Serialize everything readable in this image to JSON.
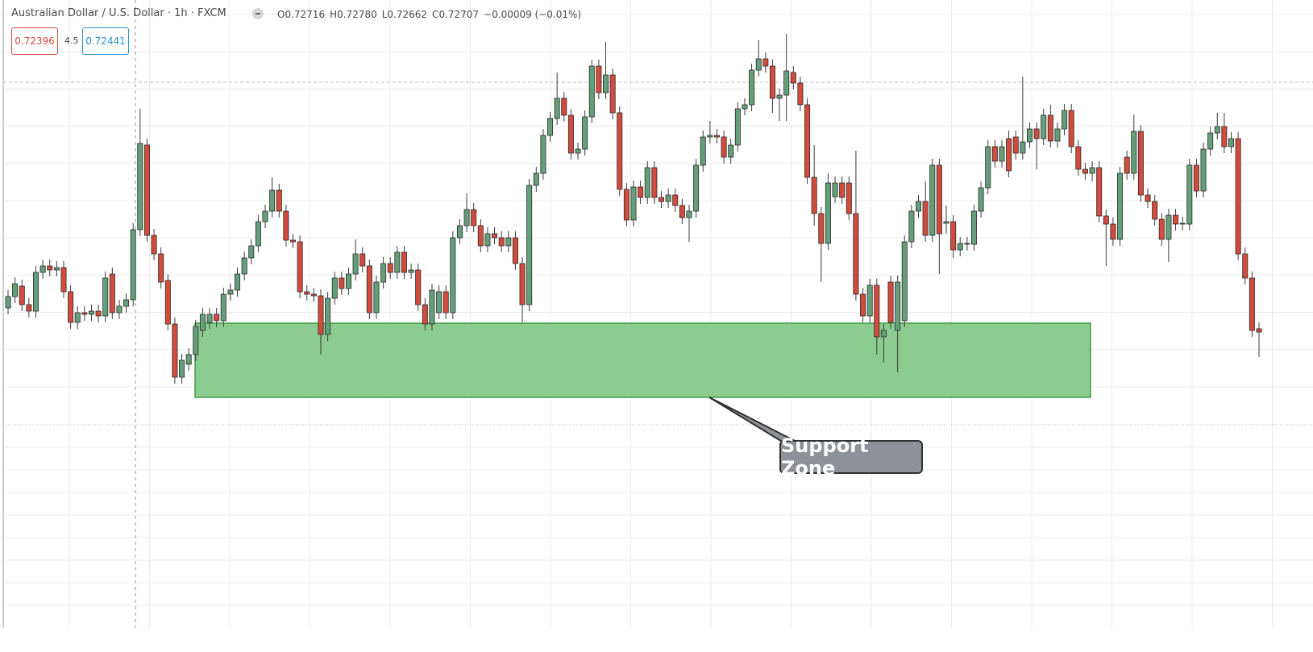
{
  "header": {
    "symbol": "Australian Dollar / U.S. Dollar · 1h · FXCM",
    "ohlc": [
      {
        "label": "O",
        "value": "0.72716"
      },
      {
        "label": "H",
        "value": "0.72780"
      },
      {
        "label": "L",
        "value": "0.72662"
      },
      {
        "label": "C",
        "value": "0.72707"
      }
    ],
    "change": "−0.00009 (−0.01%)",
    "bid": "0.72396",
    "spread": 4.5,
    "ask": "0.72441"
  },
  "chart_data": {
    "type": "candlestick",
    "ylim": [
      0.7194,
      0.735
    ],
    "grid": true,
    "up_color": "#649f7a",
    "down_color": "#d34b3c",
    "zone": {
      "label": "Support Zone",
      "top": 0.72698,
      "bottom": 0.72514,
      "color": "#86c98a"
    },
    "open": [
      0.72736,
      0.72764,
      0.7279,
      0.72744,
      0.72728,
      0.72824,
      0.7284,
      0.7283,
      0.72836,
      0.72776,
      0.727,
      0.72724,
      0.7272,
      0.72728,
      0.72716,
      0.7282,
      0.72724,
      0.7274,
      0.72756,
      0.7293,
      0.7314,
      0.72916,
      0.7287,
      0.72804,
      0.72696,
      0.72564,
      0.72596,
      0.7262,
      0.7268,
      0.727,
      0.7272,
      0.72704,
      0.7277,
      0.7278,
      0.7282,
      0.7286,
      0.7289,
      0.7295,
      0.72976,
      0.73028,
      0.72976,
      0.72904,
      0.729,
      0.72776,
      0.7277,
      0.72766,
      0.7267,
      0.7276,
      0.7281,
      0.72784,
      0.7282,
      0.7287,
      0.7284,
      0.72724,
      0.728,
      0.72846,
      0.72824,
      0.72874,
      0.72824,
      0.7283,
      0.72744,
      0.72696,
      0.72724,
      0.72776,
      0.72724,
      0.7291,
      0.7294,
      0.7298,
      0.7294,
      0.7289,
      0.7292,
      0.7291,
      0.7289,
      0.7291,
      0.72846,
      0.72744,
      0.7304,
      0.7307,
      0.73164,
      0.73206,
      0.73256,
      0.73214,
      0.7312,
      0.7313,
      0.7321,
      0.73336,
      0.7327,
      0.73314,
      0.7322,
      0.7303,
      0.72954,
      0.73036,
      0.7301,
      0.73084,
      0.7301,
      0.73,
      0.73016,
      0.7299,
      0.7296,
      0.72976,
      0.7309,
      0.7316,
      0.73164,
      0.7316,
      0.7311,
      0.7314,
      0.7323,
      0.7324,
      0.73326,
      0.73354,
      0.73336,
      0.73256,
      0.73264,
      0.7332,
      0.73294,
      0.7324,
      0.7306,
      0.7297,
      0.72896,
      0.73012,
      0.73046,
      0.73046,
      0.7297,
      0.7277,
      0.72716,
      0.72792,
      0.72664,
      0.728,
      0.7268,
      0.72704,
      0.729,
      0.72976,
      0.73,
      0.72916,
      0.7309,
      0.72946,
      0.7295,
      0.7288,
      0.72896,
      0.72894,
      0.72976,
      0.73034,
      0.73136,
      0.731,
      0.73156,
      0.7316,
      0.7312,
      0.73148,
      0.7318,
      0.73156,
      0.73214,
      0.7315,
      0.7318,
      0.73226,
      0.73136,
      0.7308,
      0.7307,
      0.73084,
      0.72964,
      0.72944,
      0.72906,
      0.7311,
      0.7307,
      0.73174,
      0.73016,
      0.73,
      0.72956,
      0.72906,
      0.72966,
      0.72944,
      0.72944,
      0.7309,
      0.73026,
      0.7313,
      0.7317,
      0.73186,
      0.73136,
      0.73156,
      0.7287,
      0.7281,
      0.72684
    ],
    "high": [
      0.7278,
      0.72812,
      0.72806,
      0.7276,
      0.7284,
      0.72856,
      0.72856,
      0.72852,
      0.72852,
      0.72792,
      0.7274,
      0.7274,
      0.72744,
      0.72744,
      0.72826,
      0.72836,
      0.72756,
      0.72772,
      0.72946,
      0.7323,
      0.73156,
      0.72932,
      0.72886,
      0.7282,
      0.72712,
      0.72622,
      0.72636,
      0.72706,
      0.72736,
      0.72736,
      0.72736,
      0.72786,
      0.72796,
      0.72836,
      0.72876,
      0.72906,
      0.72966,
      0.72992,
      0.7306,
      0.73044,
      0.72992,
      0.7292,
      0.72916,
      0.72792,
      0.72786,
      0.72782,
      0.72776,
      0.72826,
      0.72826,
      0.72836,
      0.72906,
      0.72886,
      0.72856,
      0.72816,
      0.72862,
      0.72862,
      0.7289,
      0.7289,
      0.72846,
      0.72846,
      0.7276,
      0.72796,
      0.72792,
      0.72792,
      0.72926,
      0.72956,
      0.7302,
      0.72996,
      0.72956,
      0.72936,
      0.72936,
      0.72926,
      0.72926,
      0.72926,
      0.72862,
      0.73056,
      0.73086,
      0.7318,
      0.73222,
      0.7332,
      0.73272,
      0.7323,
      0.73146,
      0.73226,
      0.73352,
      0.73352,
      0.73396,
      0.7333,
      0.73236,
      0.73046,
      0.73052,
      0.73052,
      0.731,
      0.731,
      0.73026,
      0.73032,
      0.73032,
      0.73006,
      0.72992,
      0.73106,
      0.73176,
      0.732,
      0.7318,
      0.73176,
      0.73156,
      0.73246,
      0.73256,
      0.73342,
      0.734,
      0.7337,
      0.73352,
      0.7328,
      0.73416,
      0.73336,
      0.7331,
      0.73256,
      0.7314,
      0.72986,
      0.7307,
      0.73062,
      0.73062,
      0.73062,
      0.73126,
      0.72786,
      0.72808,
      0.72808,
      0.72696,
      0.72816,
      0.72816,
      0.72916,
      0.72992,
      0.73016,
      0.7305,
      0.73106,
      0.73106,
      0.7299,
      0.72966,
      0.72912,
      0.72912,
      0.72992,
      0.7305,
      0.73152,
      0.73152,
      0.73152,
      0.73176,
      0.73176,
      0.7331,
      0.73196,
      0.73196,
      0.7323,
      0.7324,
      0.73196,
      0.73242,
      0.73242,
      0.73152,
      0.73096,
      0.731,
      0.731,
      0.7298,
      0.7296,
      0.73086,
      0.73126,
      0.73216,
      0.7319,
      0.73032,
      0.73016,
      0.72972,
      0.72982,
      0.72982,
      0.72962,
      0.73106,
      0.73106,
      0.73146,
      0.73186,
      0.7322,
      0.7322,
      0.73172,
      0.73172,
      0.72886,
      0.72826,
      0.727
    ],
    "low": [
      0.7272,
      0.72748,
      0.72728,
      0.72712,
      0.72712,
      0.72808,
      0.72814,
      0.72814,
      0.7276,
      0.72684,
      0.72684,
      0.72704,
      0.72704,
      0.727,
      0.727,
      0.72708,
      0.72708,
      0.72724,
      0.7274,
      0.72914,
      0.729,
      0.72854,
      0.72784,
      0.7268,
      0.72548,
      0.72548,
      0.7258,
      0.72604,
      0.72664,
      0.72684,
      0.72688,
      0.72688,
      0.72754,
      0.72764,
      0.72804,
      0.72844,
      0.72874,
      0.72934,
      0.7296,
      0.7296,
      0.72888,
      0.72884,
      0.7276,
      0.72754,
      0.7275,
      0.7262,
      0.72654,
      0.72744,
      0.72768,
      0.72768,
      0.72804,
      0.72824,
      0.72708,
      0.72708,
      0.72784,
      0.72808,
      0.72808,
      0.72808,
      0.72808,
      0.72728,
      0.7268,
      0.7268,
      0.72708,
      0.72708,
      0.72708,
      0.72894,
      0.72924,
      0.72924,
      0.72874,
      0.72874,
      0.72894,
      0.72874,
      0.72874,
      0.7283,
      0.727,
      0.72728,
      0.73024,
      0.73054,
      0.73148,
      0.7319,
      0.73198,
      0.73104,
      0.73104,
      0.73114,
      0.73194,
      0.73254,
      0.73254,
      0.73204,
      0.73014,
      0.72938,
      0.72938,
      0.72994,
      0.72994,
      0.72994,
      0.72984,
      0.72984,
      0.72974,
      0.72944,
      0.729,
      0.7296,
      0.73074,
      0.73144,
      0.73144,
      0.73094,
      0.73094,
      0.73124,
      0.73214,
      0.73224,
      0.7331,
      0.7332,
      0.7322,
      0.732,
      0.732,
      0.73278,
      0.73224,
      0.73044,
      0.7294,
      0.728,
      0.7288,
      0.72996,
      0.72994,
      0.72954,
      0.72754,
      0.727,
      0.727,
      0.7262,
      0.726,
      0.72684,
      0.72576,
      0.72688,
      0.72884,
      0.7296,
      0.729,
      0.729,
      0.7282,
      0.7292,
      0.7286,
      0.72864,
      0.72878,
      0.72878,
      0.7296,
      0.73018,
      0.73084,
      0.73084,
      0.7306,
      0.73104,
      0.73104,
      0.73132,
      0.7308,
      0.7314,
      0.73134,
      0.73134,
      0.73164,
      0.7312,
      0.73064,
      0.73054,
      0.7305,
      0.72948,
      0.7284,
      0.7289,
      0.7289,
      0.73054,
      0.73054,
      0.73,
      0.72984,
      0.7294,
      0.7289,
      0.7285,
      0.72928,
      0.72928,
      0.72928,
      0.7301,
      0.7301,
      0.73114,
      0.73154,
      0.7312,
      0.7312,
      0.72854,
      0.72794,
      0.72664,
      0.72614
    ],
    "close": [
      0.72764,
      0.72796,
      0.72744,
      0.72728,
      0.72824,
      0.7284,
      0.7283,
      0.72836,
      0.72776,
      0.727,
      0.72724,
      0.7272,
      0.72728,
      0.72716,
      0.7281,
      0.72724,
      0.7274,
      0.72756,
      0.7293,
      0.73144,
      0.72916,
      0.7287,
      0.728,
      0.72696,
      0.72564,
      0.72606,
      0.7262,
      0.7269,
      0.7272,
      0.7272,
      0.72704,
      0.7277,
      0.7278,
      0.7282,
      0.7286,
      0.7289,
      0.7295,
      0.72976,
      0.73028,
      0.72976,
      0.72904,
      0.729,
      0.72776,
      0.7277,
      0.72766,
      0.7267,
      0.7276,
      0.7281,
      0.72784,
      0.7282,
      0.7287,
      0.7284,
      0.72724,
      0.728,
      0.72846,
      0.72824,
      0.72874,
      0.72824,
      0.7283,
      0.72744,
      0.72696,
      0.7278,
      0.72776,
      0.72724,
      0.7291,
      0.7294,
      0.7298,
      0.7294,
      0.7289,
      0.7292,
      0.7291,
      0.7289,
      0.7291,
      0.72846,
      0.72744,
      0.7304,
      0.7307,
      0.73164,
      0.73206,
      0.73256,
      0.73214,
      0.7312,
      0.7313,
      0.7321,
      0.73336,
      0.7327,
      0.73314,
      0.7322,
      0.7303,
      0.72954,
      0.73036,
      0.7301,
      0.73084,
      0.7301,
      0.73,
      0.73016,
      0.7299,
      0.7296,
      0.72976,
      0.7309,
      0.7316,
      0.73164,
      0.7316,
      0.7311,
      0.7314,
      0.7323,
      0.7324,
      0.73326,
      0.73354,
      0.73336,
      0.73256,
      0.73264,
      0.73324,
      0.73294,
      0.7324,
      0.7306,
      0.7297,
      0.72896,
      0.73046,
      0.73046,
      0.7301,
      0.7297,
      0.7277,
      0.72716,
      0.72792,
      0.72664,
      0.7268,
      0.727,
      0.728,
      0.729,
      0.72976,
      0.73,
      0.72916,
      0.7309,
      0.7292,
      0.7295,
      0.7288,
      0.72896,
      0.72894,
      0.72976,
      0.73034,
      0.73136,
      0.731,
      0.73136,
      0.73076,
      0.7312,
      0.73148,
      0.7318,
      0.73156,
      0.73214,
      0.7315,
      0.7318,
      0.73226,
      0.73136,
      0.7308,
      0.7307,
      0.73084,
      0.72964,
      0.72944,
      0.72906,
      0.7307,
      0.7307,
      0.73174,
      0.73016,
      0.73,
      0.72956,
      0.72906,
      0.72966,
      0.72944,
      0.72946,
      0.7309,
      0.73026,
      0.7313,
      0.7317,
      0.73186,
      0.73136,
      0.73156,
      0.7287,
      0.7281,
      0.7268,
      0.72676
    ]
  }
}
